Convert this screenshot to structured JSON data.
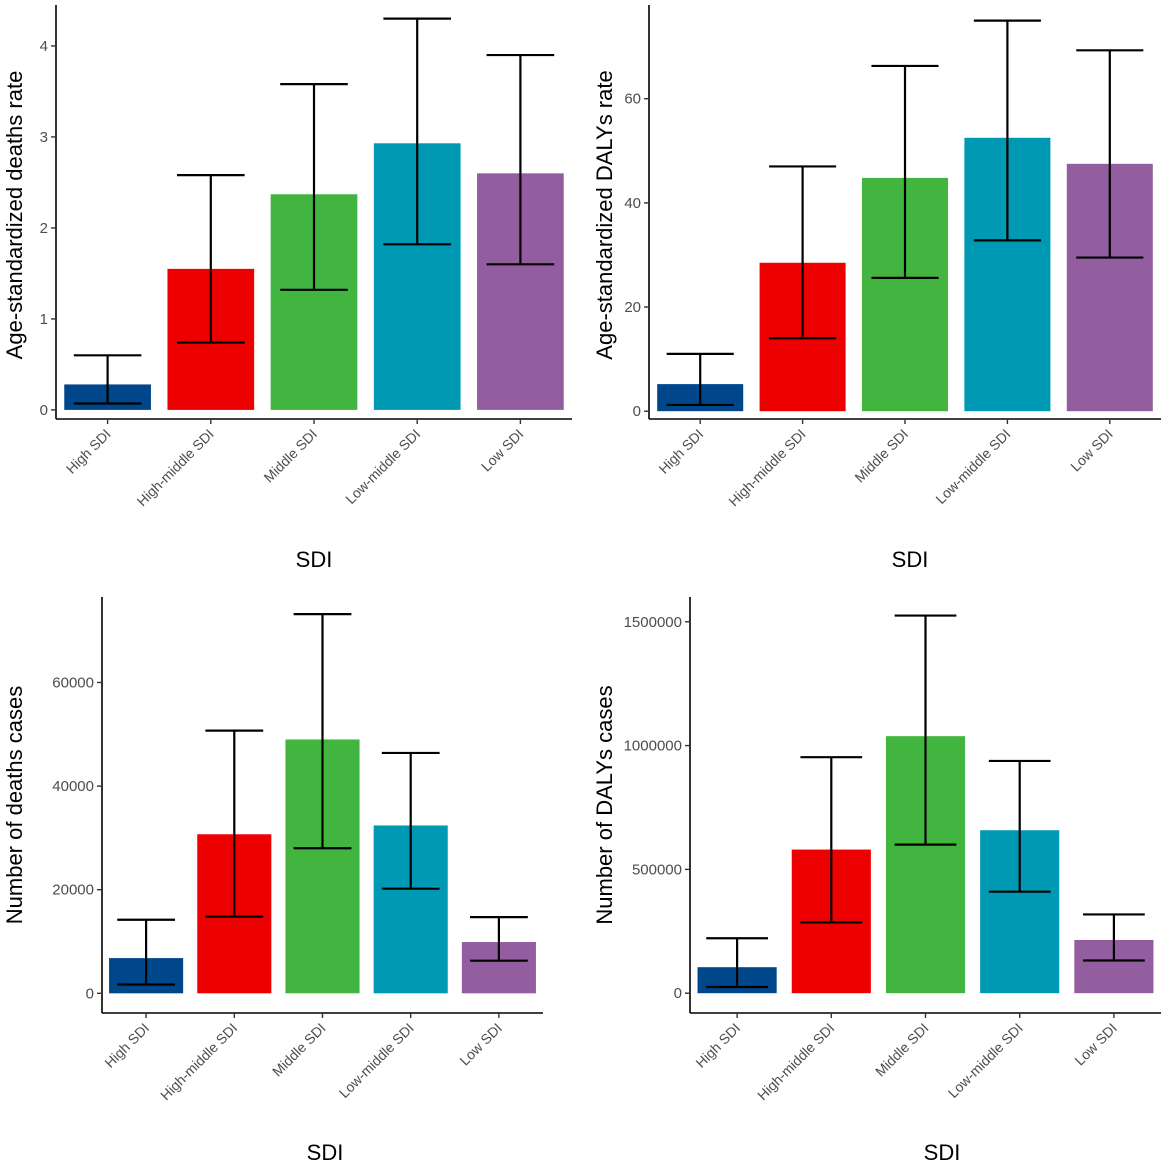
{
  "colors": {
    "High SDI": "#00468b",
    "High-middle SDI": "#ed0000",
    "Middle SDI": "#42b540",
    "Low-middle SDI": "#0099b4",
    "Low SDI": "#925e9f"
  },
  "chart_data": [
    {
      "type": "bar",
      "title": "",
      "xlabel": "SDI",
      "ylabel": "Age-standardized deaths rate",
      "categories": [
        "High SDI",
        "High-middle SDI",
        "Middle SDI",
        "Low-middle SDI",
        "Low SDI"
      ],
      "values": [
        0.28,
        1.55,
        2.37,
        2.93,
        2.6
      ],
      "lower": [
        0.07,
        0.74,
        1.32,
        1.82,
        1.6
      ],
      "upper": [
        0.6,
        2.58,
        3.58,
        4.3,
        3.9
      ],
      "ylim": [
        -0.1,
        4.45
      ],
      "yticks": [
        0,
        1,
        2,
        3,
        4
      ],
      "ytick_labels": [
        "0",
        "1",
        "2",
        "3",
        "4"
      ]
    },
    {
      "type": "bar",
      "title": "",
      "xlabel": "SDI",
      "ylabel": "Age-standardized DALYs rate",
      "categories": [
        "High SDI",
        "High-middle SDI",
        "Middle SDI",
        "Low-middle SDI",
        "Low SDI"
      ],
      "values": [
        5.2,
        28.5,
        44.8,
        52.5,
        47.5
      ],
      "lower": [
        1.2,
        14.0,
        25.6,
        32.8,
        29.5
      ],
      "upper": [
        11.0,
        47.0,
        66.3,
        75.0,
        69.3
      ],
      "ylim": [
        -1.5,
        78
      ],
      "yticks": [
        0,
        20,
        40,
        60
      ],
      "ytick_labels": [
        "0",
        "20",
        "40",
        "60"
      ]
    },
    {
      "type": "bar",
      "title": "",
      "xlabel": "SDI",
      "ylabel": "Number of deaths cases",
      "categories": [
        "High SDI",
        "High-middle SDI",
        "Middle SDI",
        "Low-middle SDI",
        "Low SDI"
      ],
      "values": [
        6800,
        30700,
        49000,
        32400,
        9900
      ],
      "lower": [
        1700,
        14800,
        28000,
        20200,
        6300
      ],
      "upper": [
        14200,
        50700,
        73200,
        46400,
        14700
      ],
      "ylim": [
        -3800,
        76500
      ],
      "yticks": [
        0,
        20000,
        40000,
        60000
      ],
      "ytick_labels": [
        "0",
        "20000",
        "40000",
        "60000"
      ]
    },
    {
      "type": "bar",
      "title": "",
      "xlabel": "SDI",
      "ylabel": "Number of DALYs cases",
      "categories": [
        "High SDI",
        "High-middle SDI",
        "Middle SDI",
        "Low-middle SDI",
        "Low SDI"
      ],
      "values": [
        105000,
        580000,
        1038000,
        658000,
        215000
      ],
      "lower": [
        25000,
        286000,
        600000,
        410000,
        132000
      ],
      "upper": [
        222000,
        953000,
        1525000,
        938000,
        318000
      ],
      "ylim": [
        -80000,
        1600000
      ],
      "yticks": [
        0,
        500000,
        1000000,
        1500000
      ],
      "ytick_labels": [
        "0",
        "500000",
        "1000000",
        "1500000"
      ]
    }
  ]
}
